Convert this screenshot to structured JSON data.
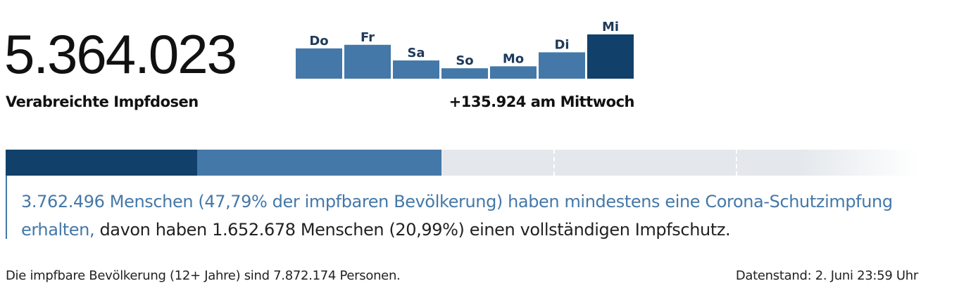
{
  "headline": {
    "total_doses": "5.364.023",
    "label": "Verabreichte Impfdosen",
    "daily_change": "+135.924 am Mittwoch"
  },
  "chart_data": {
    "type": "bar",
    "categories": [
      "Do",
      "Fr",
      "Sa",
      "So",
      "Mo",
      "Di",
      "Mi"
    ],
    "values": [
      93000,
      104000,
      56000,
      32000,
      38000,
      81000,
      135924
    ],
    "highlight_index": 6,
    "colors": {
      "normal": "#4478a8",
      "highlight": "#11406a"
    }
  },
  "progress": {
    "full_pct": 20.99,
    "at_least_one_pct": 47.79,
    "tick_pct": [
      60,
      80
    ],
    "colors": {
      "full": "#11406a",
      "partial": "#4478a8",
      "rest": "#e4e8ec"
    }
  },
  "description": {
    "highlight": "3.762.496 Menschen (47,79% der impfbaren Bevölkerung) haben mindestens eine Corona-Schutzimpfung erhalten,",
    "rest": " davon haben 1.652.678 Menschen (20,99%) einen vollständigen Impfschutz."
  },
  "footer": {
    "population": "Die impfbare Bevölkerung (12+ Jahre) sind 7.872.174 Personen.",
    "timestamp": "Datenstand: 2. Juni 23:59 Uhr"
  }
}
